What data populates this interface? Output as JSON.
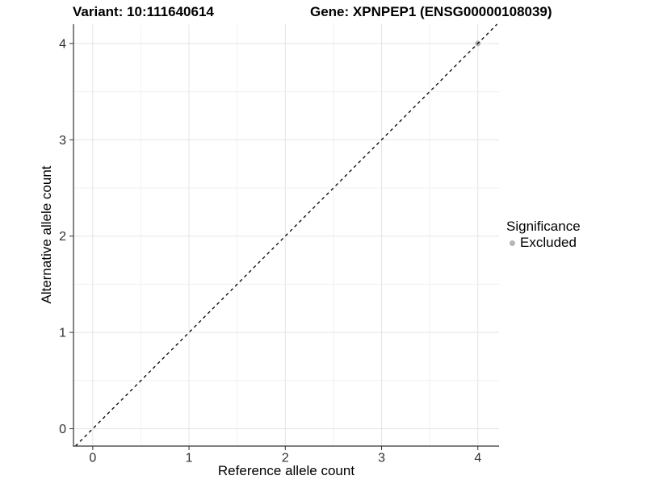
{
  "figure": {
    "variant_title": "Variant: 10:111640614",
    "gene_title": "Gene: XPNPEP1 (ENSG00000108039)"
  },
  "legend": {
    "title": "Significance",
    "items": [
      {
        "label": "Excluded",
        "color": "#b5b5b5"
      }
    ]
  },
  "chart_data": {
    "type": "scatter",
    "title": "Variant: 10:111640614  /  Gene: XPNPEP1 (ENSG00000108039)",
    "xlabel": "Reference allele count",
    "ylabel": "Alternative allele count",
    "xlim": [
      -0.2,
      4.22
    ],
    "ylim": [
      -0.18,
      4.2
    ],
    "x_ticks": [
      0,
      1,
      2,
      3,
      4
    ],
    "y_ticks": [
      0,
      1,
      2,
      3,
      4
    ],
    "x_minor_ticks": [
      0.5,
      1.5,
      2.5,
      3.5
    ],
    "y_minor_ticks": [
      0.5,
      1.5,
      2.5,
      3.5
    ],
    "grid": true,
    "legend_position": "right",
    "legend_title": "Significance",
    "series": [
      {
        "name": "Excluded",
        "color": "#b5b5b5",
        "points": [
          {
            "x": 4,
            "y": 4
          }
        ]
      }
    ],
    "reference_line": {
      "slope": 1,
      "intercept": 0,
      "style": "dashed",
      "color": "#000000"
    }
  },
  "style": {
    "background": "#ffffff",
    "grid_major_color": "#e4e4e4",
    "grid_minor_color": "#f1f1f1",
    "axis_color": "#333333",
    "tick_label_color": "#303030",
    "tick_font_size": 16
  }
}
